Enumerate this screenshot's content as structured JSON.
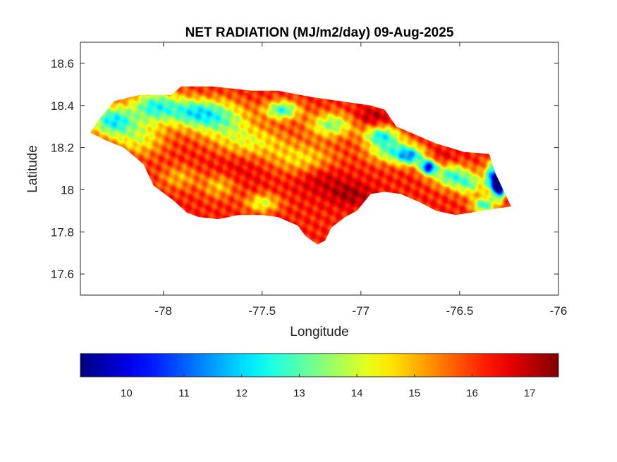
{
  "chart_data": {
    "type": "heatmap",
    "title": "NET RADIATION (MJ/m2/day) 09-Aug-2025",
    "xlabel": "Longitude",
    "ylabel": "Latitude",
    "xlim": [
      -78.42,
      -76.0
    ],
    "ylim": [
      17.5,
      18.7
    ],
    "x_ticks": [
      -78,
      -77.5,
      -77,
      -76.5,
      -76
    ],
    "y_ticks": [
      17.6,
      17.8,
      18,
      18.2,
      18.4,
      18.6
    ],
    "x_tick_labels": [
      "-78",
      "-77.5",
      "-77",
      "-76.5",
      "-76"
    ],
    "y_tick_labels": [
      "17.6",
      "17.8",
      "18",
      "18.2",
      "18.4",
      "18.6"
    ],
    "colormap": "jet",
    "colorbar": {
      "orientation": "horizontal",
      "placement": "below",
      "range": [
        9.2,
        17.5
      ],
      "ticks": [
        10,
        11,
        12,
        13,
        14,
        15,
        16,
        17
      ],
      "tick_labels": [
        "10",
        "11",
        "12",
        "13",
        "14",
        "15",
        "16",
        "17"
      ]
    },
    "region_outline": [
      [
        -78.37,
        18.27
      ],
      [
        -78.32,
        18.34
      ],
      [
        -78.25,
        18.42
      ],
      [
        -78.12,
        18.45
      ],
      [
        -77.96,
        18.45
      ],
      [
        -77.91,
        18.49
      ],
      [
        -77.75,
        18.49
      ],
      [
        -77.55,
        18.47
      ],
      [
        -77.42,
        18.47
      ],
      [
        -77.25,
        18.44
      ],
      [
        -77.1,
        18.42
      ],
      [
        -76.95,
        18.4
      ],
      [
        -76.88,
        18.38
      ],
      [
        -76.82,
        18.3
      ],
      [
        -76.72,
        18.26
      ],
      [
        -76.62,
        18.22
      ],
      [
        -76.48,
        18.18
      ],
      [
        -76.35,
        18.17
      ],
      [
        -76.32,
        18.08
      ],
      [
        -76.28,
        18.0
      ],
      [
        -76.24,
        17.92
      ],
      [
        -76.32,
        17.91
      ],
      [
        -76.45,
        17.89
      ],
      [
        -76.52,
        17.88
      ],
      [
        -76.62,
        17.9
      ],
      [
        -76.7,
        17.94
      ],
      [
        -76.8,
        17.98
      ],
      [
        -76.88,
        17.99
      ],
      [
        -76.95,
        17.98
      ],
      [
        -77.02,
        17.9
      ],
      [
        -77.08,
        17.87
      ],
      [
        -77.15,
        17.82
      ],
      [
        -77.18,
        17.76
      ],
      [
        -77.22,
        17.74
      ],
      [
        -77.28,
        17.78
      ],
      [
        -77.32,
        17.83
      ],
      [
        -77.42,
        17.87
      ],
      [
        -77.5,
        17.88
      ],
      [
        -77.62,
        17.88
      ],
      [
        -77.72,
        17.86
      ],
      [
        -77.82,
        17.87
      ],
      [
        -77.88,
        17.89
      ],
      [
        -77.95,
        17.95
      ],
      [
        -78.05,
        18.02
      ],
      [
        -78.1,
        18.12
      ],
      [
        -78.2,
        18.2
      ],
      [
        -78.28,
        18.23
      ],
      [
        -78.37,
        18.27
      ]
    ],
    "value_features": [
      {
        "lon": -78.26,
        "lat": 18.33,
        "value": 12.4,
        "lon_spread": 0.08,
        "lat_spread": 0.05
      },
      {
        "lon": -78.05,
        "lat": 18.4,
        "value": 12.9,
        "lon_spread": 0.08,
        "lat_spread": 0.05
      },
      {
        "lon": -77.85,
        "lat": 18.37,
        "value": 12.8,
        "lon_spread": 0.1,
        "lat_spread": 0.05
      },
      {
        "lon": -77.7,
        "lat": 18.33,
        "value": 13.8,
        "lon_spread": 0.1,
        "lat_spread": 0.06
      },
      {
        "lon": -78.12,
        "lat": 18.25,
        "value": 14.3,
        "lon_spread": 0.09,
        "lat_spread": 0.06
      },
      {
        "lon": -77.55,
        "lat": 18.23,
        "value": 14.5,
        "lon_spread": 0.12,
        "lat_spread": 0.05
      },
      {
        "lon": -77.3,
        "lat": 18.15,
        "value": 14.6,
        "lon_spread": 0.12,
        "lat_spread": 0.05
      },
      {
        "lon": -77.4,
        "lat": 18.38,
        "value": 12.6,
        "lon_spread": 0.06,
        "lat_spread": 0.03
      },
      {
        "lon": -77.15,
        "lat": 18.31,
        "value": 13.4,
        "lon_spread": 0.08,
        "lat_spread": 0.04
      },
      {
        "lon": -76.9,
        "lat": 18.26,
        "value": 12.8,
        "lon_spread": 0.06,
        "lat_spread": 0.03
      },
      {
        "lon": -76.85,
        "lat": 18.19,
        "value": 13.2,
        "lon_spread": 0.08,
        "lat_spread": 0.04
      },
      {
        "lon": -76.75,
        "lat": 18.16,
        "value": 12.3,
        "lon_spread": 0.05,
        "lat_spread": 0.03
      },
      {
        "lon": -76.66,
        "lat": 18.11,
        "value": 10.4,
        "lon_spread": 0.03,
        "lat_spread": 0.025
      },
      {
        "lon": -76.55,
        "lat": 18.07,
        "value": 12.9,
        "lon_spread": 0.06,
        "lat_spread": 0.04
      },
      {
        "lon": -76.45,
        "lat": 18.03,
        "value": 13.6,
        "lon_spread": 0.05,
        "lat_spread": 0.04
      },
      {
        "lon": -76.33,
        "lat": 18.06,
        "value": 11.0,
        "lon_spread": 0.03,
        "lat_spread": 0.05
      },
      {
        "lon": -76.3,
        "lat": 18.02,
        "value": 9.7,
        "lon_spread": 0.02,
        "lat_spread": 0.04
      },
      {
        "lon": -76.38,
        "lat": 17.93,
        "value": 12.7,
        "lon_spread": 0.04,
        "lat_spread": 0.025
      },
      {
        "lon": -77.5,
        "lat": 17.94,
        "value": 14.1,
        "lon_spread": 0.06,
        "lat_spread": 0.03
      },
      {
        "lon": -77.72,
        "lat": 18.02,
        "value": 14.8,
        "lon_spread": 0.06,
        "lat_spread": 0.04
      },
      {
        "lon": -77.92,
        "lat": 18.06,
        "value": 15.0,
        "lon_spread": 0.07,
        "lat_spread": 0.04
      },
      {
        "lon": -77.2,
        "lat": 18.05,
        "value": 16.9,
        "lon_spread": 0.09,
        "lat_spread": 0.05
      },
      {
        "lon": -77.05,
        "lat": 17.98,
        "value": 17.2,
        "lon_spread": 0.08,
        "lat_spread": 0.04
      },
      {
        "lon": -76.95,
        "lat": 18.35,
        "value": 17.1,
        "lon_spread": 0.07,
        "lat_spread": 0.03
      },
      {
        "lon": -76.6,
        "lat": 18.15,
        "value": 16.8,
        "lon_spread": 0.07,
        "lat_spread": 0.03
      },
      {
        "lon": -77.6,
        "lat": 18.1,
        "value": 16.6,
        "lon_spread": 0.12,
        "lat_spread": 0.05
      },
      {
        "lon": -77.8,
        "lat": 18.45,
        "value": 16.5,
        "lon_spread": 0.06,
        "lat_spread": 0.03
      }
    ],
    "baseline_value": 16.2
  }
}
